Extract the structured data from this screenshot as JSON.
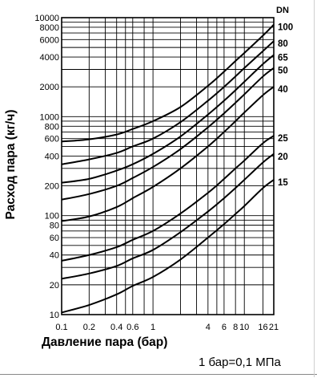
{
  "chart_data": {
    "type": "line",
    "xlabel": "Давление пара (бар)",
    "ylabel": "Расход пара (кг/ч)",
    "note": "1 бар=0,1 МПа",
    "legend_title": "DN",
    "x_scale": "log",
    "y_scale": "log",
    "xlim": [
      0.1,
      21
    ],
    "ylim": [
      10,
      10000
    ],
    "grid": true,
    "x_ticks": [
      "0.1",
      "0.2",
      "0.4",
      "0.6",
      "1",
      "4",
      "6",
      "8",
      "10",
      "16",
      "21"
    ],
    "x_tick_values": [
      0.1,
      0.2,
      0.4,
      0.6,
      1,
      4,
      6,
      8,
      10,
      16,
      21
    ],
    "y_ticks": [
      "10",
      "20",
      "40",
      "60",
      "80",
      "100",
      "200",
      "400",
      "600",
      "800",
      "1000",
      "2000",
      "4000",
      "6000",
      "8000",
      "10000"
    ],
    "y_tick_values": [
      10,
      20,
      40,
      60,
      80,
      100,
      200,
      400,
      600,
      800,
      1000,
      2000,
      4000,
      6000,
      8000,
      10000
    ],
    "x_grid": [
      0.1,
      0.2,
      0.3,
      0.4,
      0.5,
      0.6,
      0.8,
      1,
      2,
      3,
      4,
      5,
      6,
      8,
      10,
      16,
      21
    ],
    "y_grid": [
      10,
      20,
      30,
      40,
      50,
      60,
      70,
      80,
      90,
      100,
      200,
      300,
      400,
      500,
      600,
      700,
      800,
      900,
      1000,
      2000,
      3000,
      4000,
      5000,
      6000,
      7000,
      8000,
      9000,
      10000
    ],
    "series": [
      {
        "name": "100",
        "x": [
          0.1,
          0.2,
          0.4,
          0.6,
          1,
          2,
          4,
          6,
          8,
          10,
          16,
          21
        ],
        "y": [
          560,
          590,
          660,
          750,
          900,
          1250,
          2050,
          2850,
          3650,
          4400,
          6600,
          8500
        ]
      },
      {
        "name": "80",
        "x": [
          0.1,
          0.2,
          0.4,
          0.6,
          1,
          2,
          4,
          6,
          8,
          10,
          16,
          21
        ],
        "y": [
          330,
          370,
          430,
          500,
          600,
          880,
          1450,
          2000,
          2550,
          3100,
          4600,
          5800
        ]
      },
      {
        "name": "65",
        "x": [
          0.1,
          0.2,
          0.4,
          0.6,
          1,
          2,
          4,
          6,
          8,
          10,
          16,
          21
        ],
        "y": [
          215,
          235,
          285,
          330,
          420,
          630,
          1050,
          1450,
          1850,
          2250,
          3400,
          4200
        ]
      },
      {
        "name": "50",
        "x": [
          0.1,
          0.2,
          0.4,
          0.6,
          1,
          2,
          4,
          6,
          8,
          10,
          16,
          21
        ],
        "y": [
          145,
          165,
          200,
          240,
          310,
          470,
          780,
          1080,
          1380,
          1680,
          2550,
          3100
        ]
      },
      {
        "name": "40",
        "x": [
          0.1,
          0.2,
          0.4,
          0.6,
          1,
          2,
          4,
          6,
          8,
          10,
          16,
          21
        ],
        "y": [
          88,
          98,
          122,
          150,
          195,
          300,
          500,
          700,
          900,
          1100,
          1650,
          2000
        ]
      },
      {
        "name": "25",
        "x": [
          0.1,
          0.2,
          0.4,
          0.6,
          1,
          2,
          4,
          6,
          8,
          10,
          16,
          21
        ],
        "y": [
          35,
          40,
          48,
          57,
          70,
          105,
          170,
          235,
          300,
          360,
          540,
          640
        ]
      },
      {
        "name": "20",
        "x": [
          0.1,
          0.2,
          0.4,
          0.6,
          1,
          2,
          4,
          6,
          8,
          10,
          16,
          21
        ],
        "y": [
          23,
          26,
          31,
          37,
          45,
          68,
          110,
          150,
          190,
          230,
          345,
          420
        ]
      },
      {
        "name": "15",
        "x": [
          0.1,
          0.2,
          0.4,
          0.6,
          1,
          2,
          4,
          6,
          8,
          10,
          16,
          21
        ],
        "y": [
          10.5,
          12.5,
          16,
          19.5,
          24,
          36,
          60,
          82,
          104,
          125,
          190,
          230
        ]
      }
    ]
  }
}
